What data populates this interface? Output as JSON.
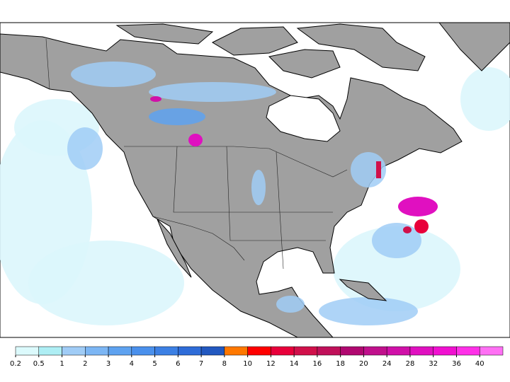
{
  "legend": {
    "ticks": [
      0.2,
      0.5,
      1,
      2,
      3,
      4,
      5,
      6,
      7,
      8,
      10,
      12,
      14,
      16,
      18,
      20,
      24,
      28,
      32,
      36,
      40
    ],
    "colors": [
      "#dcfafc",
      "#aeeef4",
      "#a0ccf6",
      "#7cb6f4",
      "#5ea2f0",
      "#4a90ec",
      "#3c80e4",
      "#2e6cd8",
      "#2258c0",
      "#ff7800",
      "#ff0000",
      "#e8003a",
      "#d0104a",
      "#c0105a",
      "#b00870",
      "#c0108c",
      "#d010a8",
      "#e010c0",
      "#f010d0",
      "#ff30e8",
      "#ff70f4"
    ]
  }
}
